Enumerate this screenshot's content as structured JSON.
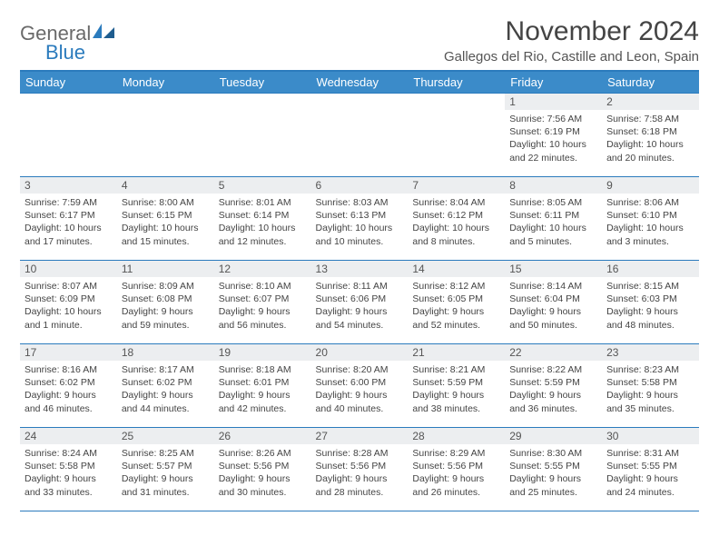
{
  "logo": {
    "general": "General",
    "blue": "Blue"
  },
  "title": "November 2024",
  "subtitle": "Gallegos del Rio, Castille and Leon, Spain",
  "colors": {
    "header_bg": "#3b8bc9",
    "header_text": "#ffffff",
    "border": "#2b7bbd",
    "daynum_bg": "#eceef0",
    "text": "#444444",
    "logo_gray": "#6a6a6a",
    "logo_blue": "#2b7bbd",
    "background": "#ffffff"
  },
  "weekdays": [
    "Sunday",
    "Monday",
    "Tuesday",
    "Wednesday",
    "Thursday",
    "Friday",
    "Saturday"
  ],
  "weeks": [
    [
      null,
      null,
      null,
      null,
      null,
      {
        "n": "1",
        "sr": "Sunrise: 7:56 AM",
        "ss": "Sunset: 6:19 PM",
        "dl": "Daylight: 10 hours and 22 minutes."
      },
      {
        "n": "2",
        "sr": "Sunrise: 7:58 AM",
        "ss": "Sunset: 6:18 PM",
        "dl": "Daylight: 10 hours and 20 minutes."
      }
    ],
    [
      {
        "n": "3",
        "sr": "Sunrise: 7:59 AM",
        "ss": "Sunset: 6:17 PM",
        "dl": "Daylight: 10 hours and 17 minutes."
      },
      {
        "n": "4",
        "sr": "Sunrise: 8:00 AM",
        "ss": "Sunset: 6:15 PM",
        "dl": "Daylight: 10 hours and 15 minutes."
      },
      {
        "n": "5",
        "sr": "Sunrise: 8:01 AM",
        "ss": "Sunset: 6:14 PM",
        "dl": "Daylight: 10 hours and 12 minutes."
      },
      {
        "n": "6",
        "sr": "Sunrise: 8:03 AM",
        "ss": "Sunset: 6:13 PM",
        "dl": "Daylight: 10 hours and 10 minutes."
      },
      {
        "n": "7",
        "sr": "Sunrise: 8:04 AM",
        "ss": "Sunset: 6:12 PM",
        "dl": "Daylight: 10 hours and 8 minutes."
      },
      {
        "n": "8",
        "sr": "Sunrise: 8:05 AM",
        "ss": "Sunset: 6:11 PM",
        "dl": "Daylight: 10 hours and 5 minutes."
      },
      {
        "n": "9",
        "sr": "Sunrise: 8:06 AM",
        "ss": "Sunset: 6:10 PM",
        "dl": "Daylight: 10 hours and 3 minutes."
      }
    ],
    [
      {
        "n": "10",
        "sr": "Sunrise: 8:07 AM",
        "ss": "Sunset: 6:09 PM",
        "dl": "Daylight: 10 hours and 1 minute."
      },
      {
        "n": "11",
        "sr": "Sunrise: 8:09 AM",
        "ss": "Sunset: 6:08 PM",
        "dl": "Daylight: 9 hours and 59 minutes."
      },
      {
        "n": "12",
        "sr": "Sunrise: 8:10 AM",
        "ss": "Sunset: 6:07 PM",
        "dl": "Daylight: 9 hours and 56 minutes."
      },
      {
        "n": "13",
        "sr": "Sunrise: 8:11 AM",
        "ss": "Sunset: 6:06 PM",
        "dl": "Daylight: 9 hours and 54 minutes."
      },
      {
        "n": "14",
        "sr": "Sunrise: 8:12 AM",
        "ss": "Sunset: 6:05 PM",
        "dl": "Daylight: 9 hours and 52 minutes."
      },
      {
        "n": "15",
        "sr": "Sunrise: 8:14 AM",
        "ss": "Sunset: 6:04 PM",
        "dl": "Daylight: 9 hours and 50 minutes."
      },
      {
        "n": "16",
        "sr": "Sunrise: 8:15 AM",
        "ss": "Sunset: 6:03 PM",
        "dl": "Daylight: 9 hours and 48 minutes."
      }
    ],
    [
      {
        "n": "17",
        "sr": "Sunrise: 8:16 AM",
        "ss": "Sunset: 6:02 PM",
        "dl": "Daylight: 9 hours and 46 minutes."
      },
      {
        "n": "18",
        "sr": "Sunrise: 8:17 AM",
        "ss": "Sunset: 6:02 PM",
        "dl": "Daylight: 9 hours and 44 minutes."
      },
      {
        "n": "19",
        "sr": "Sunrise: 8:18 AM",
        "ss": "Sunset: 6:01 PM",
        "dl": "Daylight: 9 hours and 42 minutes."
      },
      {
        "n": "20",
        "sr": "Sunrise: 8:20 AM",
        "ss": "Sunset: 6:00 PM",
        "dl": "Daylight: 9 hours and 40 minutes."
      },
      {
        "n": "21",
        "sr": "Sunrise: 8:21 AM",
        "ss": "Sunset: 5:59 PM",
        "dl": "Daylight: 9 hours and 38 minutes."
      },
      {
        "n": "22",
        "sr": "Sunrise: 8:22 AM",
        "ss": "Sunset: 5:59 PM",
        "dl": "Daylight: 9 hours and 36 minutes."
      },
      {
        "n": "23",
        "sr": "Sunrise: 8:23 AM",
        "ss": "Sunset: 5:58 PM",
        "dl": "Daylight: 9 hours and 35 minutes."
      }
    ],
    [
      {
        "n": "24",
        "sr": "Sunrise: 8:24 AM",
        "ss": "Sunset: 5:58 PM",
        "dl": "Daylight: 9 hours and 33 minutes."
      },
      {
        "n": "25",
        "sr": "Sunrise: 8:25 AM",
        "ss": "Sunset: 5:57 PM",
        "dl": "Daylight: 9 hours and 31 minutes."
      },
      {
        "n": "26",
        "sr": "Sunrise: 8:26 AM",
        "ss": "Sunset: 5:56 PM",
        "dl": "Daylight: 9 hours and 30 minutes."
      },
      {
        "n": "27",
        "sr": "Sunrise: 8:28 AM",
        "ss": "Sunset: 5:56 PM",
        "dl": "Daylight: 9 hours and 28 minutes."
      },
      {
        "n": "28",
        "sr": "Sunrise: 8:29 AM",
        "ss": "Sunset: 5:56 PM",
        "dl": "Daylight: 9 hours and 26 minutes."
      },
      {
        "n": "29",
        "sr": "Sunrise: 8:30 AM",
        "ss": "Sunset: 5:55 PM",
        "dl": "Daylight: 9 hours and 25 minutes."
      },
      {
        "n": "30",
        "sr": "Sunrise: 8:31 AM",
        "ss": "Sunset: 5:55 PM",
        "dl": "Daylight: 9 hours and 24 minutes."
      }
    ]
  ]
}
